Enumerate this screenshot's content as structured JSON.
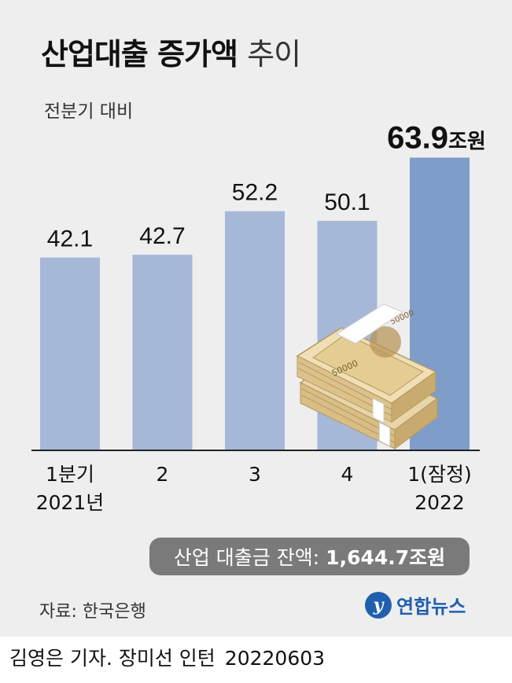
{
  "header": {
    "title_bold": "산업대출 증가액",
    "title_light": "추이",
    "subtitle": "전분기 대비"
  },
  "chart_data": {
    "type": "bar",
    "categories": [
      "1분기 2021년",
      "2",
      "3",
      "4",
      "1(잠정) 2022"
    ],
    "tick_lines": [
      [
        "1분기",
        "2021년"
      ],
      [
        "2"
      ],
      [
        "3"
      ],
      [
        "4"
      ],
      [
        "1(잠정)",
        "2022"
      ]
    ],
    "values": [
      42.1,
      42.7,
      52.2,
      50.1,
      63.9
    ],
    "value_labels": [
      "42.1",
      "42.7",
      "52.2",
      "50.1",
      "63.9"
    ],
    "unit": "조원",
    "highlight_index": 4,
    "colors": {
      "bar": "#a6b8d8",
      "highlight": "#7f9dc9"
    },
    "ylim": [
      0,
      70
    ],
    "grid": false
  },
  "balance": {
    "label": "산업 대출금 잔액:",
    "value": "1,644.7조원"
  },
  "footer": {
    "source": "자료: 한국은행",
    "logo_mark": "y",
    "logo_text": "연합뉴스",
    "credit": "김영은 기자. 장미선 인턴",
    "date": "20220603"
  },
  "illustration": {
    "icon": "banknote-stack-icon",
    "note_label": "50000"
  }
}
